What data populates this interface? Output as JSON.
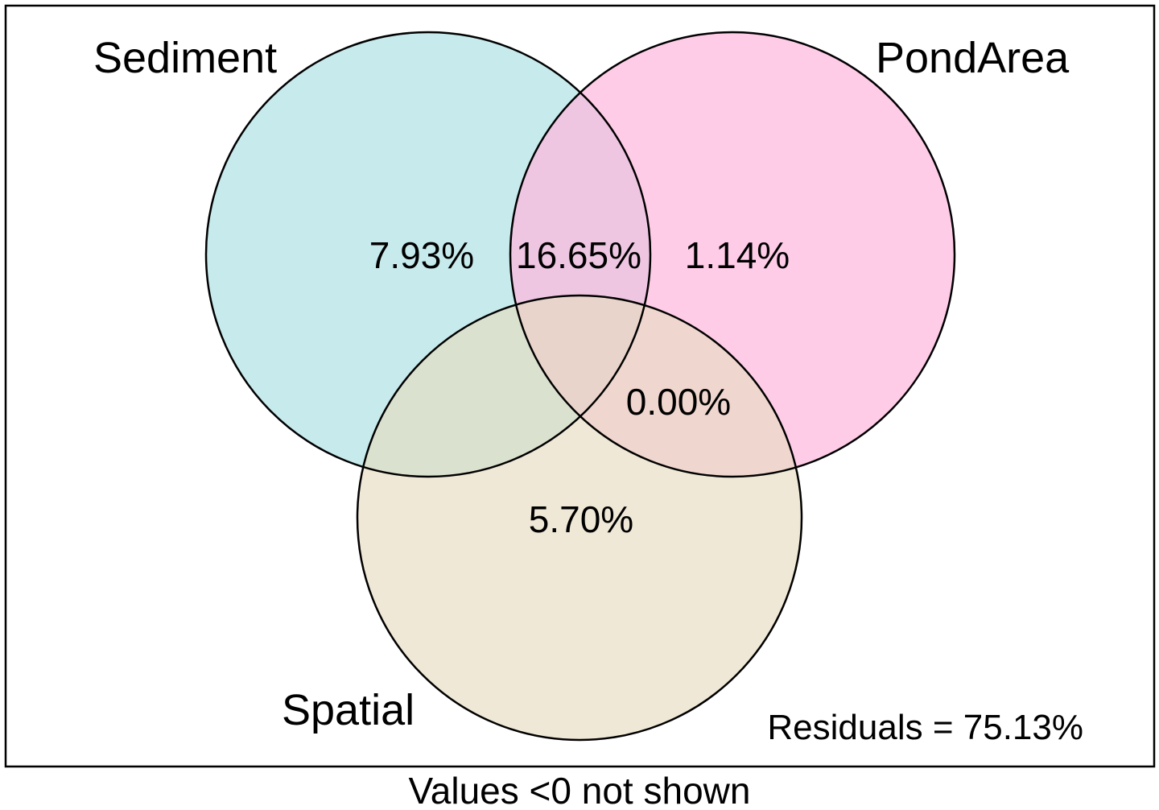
{
  "sets": [
    {
      "key": "sediment",
      "name": "Sediment",
      "color": "#c7e9eb"
    },
    {
      "key": "pondarea",
      "name": "PondArea",
      "color": "#ffc8e5"
    },
    {
      "key": "spatial",
      "name": "Spatial",
      "color": "#ece6d1"
    }
  ],
  "regions": {
    "sediment_only": "7.93%",
    "sediment_pondarea": "16.65%",
    "pondarea_only": "1.14%",
    "pondarea_spatial": "0.00%",
    "spatial_only": "5.70%"
  },
  "residuals": "Residuals = 75.13%",
  "note": "Values <0 not shown"
}
